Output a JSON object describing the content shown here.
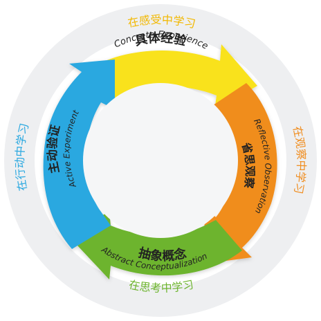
{
  "stages": [
    {
      "key": "concrete",
      "cn": "具体经验",
      "en": "Concrete Experience",
      "color": "#F9E21B"
    },
    {
      "key": "reflective",
      "cn": "省思观察",
      "en": "Reflective Observation",
      "color": "#F08D1F"
    },
    {
      "key": "abstract",
      "cn": "抽象概念",
      "en": "Abstract Conceptualization",
      "color": "#6DB42E"
    },
    {
      "key": "active",
      "cn": "主动验证",
      "en": "Active Experiment",
      "color": "#2AA8E0"
    }
  ],
  "outer_labels": {
    "top": "在感受中学习",
    "right": "在观察中学习",
    "bottom": "在思考中学习",
    "left": "在行动中学习"
  },
  "colors": {
    "outer_ring": "#EEEFF1",
    "inner_disc": "#F5F6F7",
    "top_text": "#F2B800",
    "right_text": "#F08D1F",
    "bottom_text": "#6DB42E",
    "left_text": "#2AA8E0",
    "dark_text": "#222222"
  }
}
